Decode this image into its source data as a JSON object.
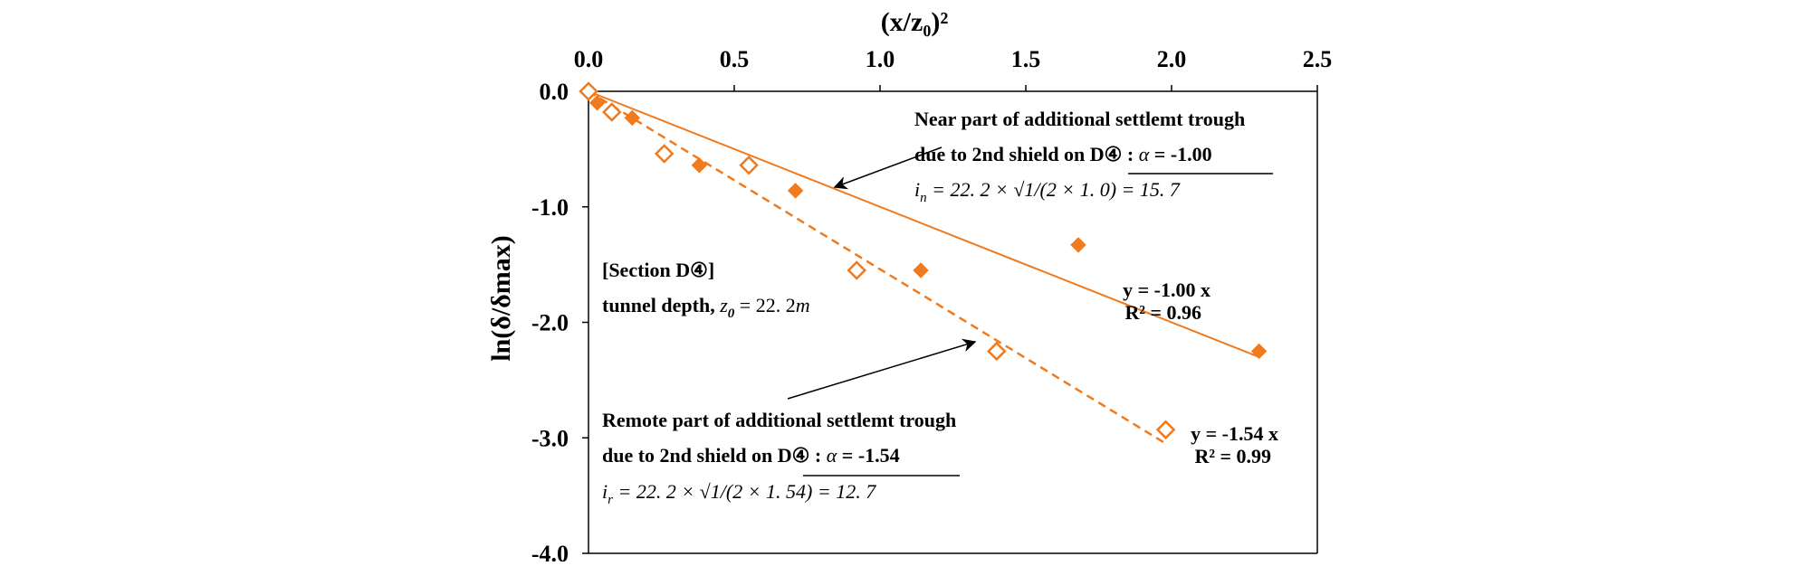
{
  "chart_data": {
    "type": "scatter",
    "title": "",
    "xlabel": "(x/z₀)²",
    "ylabel": "ln(δ/δmax)",
    "xlim": [
      0,
      2.5
    ],
    "ylim": [
      -4,
      0
    ],
    "x_axis_position": "top",
    "x_ticks": [
      "0.0",
      "0.5",
      "1.0",
      "1.5",
      "2.0",
      "2.5"
    ],
    "y_ticks": [
      "0.0",
      "-1.0",
      "-2.0",
      "-3.0",
      "-4.0"
    ],
    "grid": false,
    "color": "#f07a1e",
    "series": [
      {
        "marker": "filled-diamond",
        "x": [
          0.0,
          0.03,
          0.15,
          0.38,
          0.71,
          1.14,
          1.68,
          2.3
        ],
        "y": [
          0.0,
          -0.1,
          -0.23,
          -0.64,
          -0.86,
          -1.55,
          -1.33,
          -2.25
        ],
        "trendline": {
          "slope": -1.0,
          "style": "solid"
        },
        "equation_label": "y = -1.00 x",
        "r2_label": "R² = 0.96"
      },
      {
        "marker": "hollow-diamond",
        "x": [
          0.0,
          0.08,
          0.26,
          0.55,
          0.92,
          1.4,
          1.98
        ],
        "y": [
          0.0,
          -0.18,
          -0.54,
          -0.64,
          -1.55,
          -2.25,
          -2.93
        ],
        "trendline": {
          "slope": -1.54,
          "style": "dashed"
        },
        "equation_label": "y = -1.54 x",
        "r2_label": "R² = 0.99"
      }
    ],
    "annotations": {
      "near": {
        "line1": "Near part of additional settlemt trough",
        "line2_prefix": "due to 2nd shield on D④ : ",
        "alpha_symbol": "α",
        "alpha_value": " = -1.00",
        "formula_lhs": "i",
        "formula_sub": "n",
        "formula_mid": " = 22. 2 × ",
        "formula_rad": "1/(2 × 1. 0)",
        "formula_rhs": " = 15. 7"
      },
      "remote": {
        "line1": "Remote part of additional settlemt trough",
        "line2_prefix": "due to 2nd shield on D④ : ",
        "alpha_symbol": "α",
        "alpha_value": " = -1.54",
        "formula_lhs": "i",
        "formula_sub": "r",
        "formula_mid": " = 22. 2 × ",
        "formula_rad": "1/(2 × 1. 54)",
        "formula_rhs": " = 12. 7"
      },
      "section": {
        "line1": "[Section D④]",
        "line2_prefix": "tunnel depth, ",
        "z_symbol": "z",
        "z_sub": "0",
        "z_value": " = 22. 2",
        "z_unit": "m"
      }
    }
  }
}
